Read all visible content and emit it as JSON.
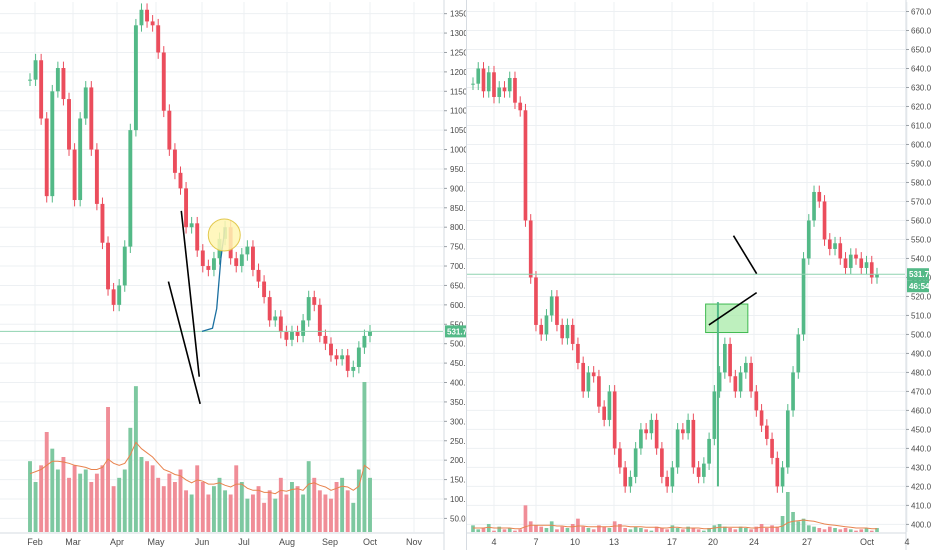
{
  "chart_data": [
    {
      "type": "candlestick",
      "y_ticks": [
        50,
        100,
        150,
        200,
        250,
        300,
        350,
        400,
        450,
        500,
        550,
        600,
        650,
        700,
        750,
        800,
        850,
        900,
        950,
        1000,
        1050,
        1100,
        1150,
        1200,
        1250,
        1300,
        1350
      ],
      "y_tick_labels": [
        "50.0",
        "100.0",
        "150.0",
        "200.0",
        "250.0",
        "300.0",
        "350.0",
        "400.0",
        "450.0",
        "500.0",
        "550.0",
        "600.0",
        "650.0",
        "700.0",
        "750.0",
        "800.0",
        "850.0",
        "900.0",
        "950.0",
        "1000.0",
        "1050.0",
        "1100.0",
        "1150.0",
        "1200.0",
        "1250.0",
        "1300.0",
        "1350.0"
      ],
      "x_tick_labels": [
        "Feb",
        "Mar",
        "Apr",
        "May",
        "Jun",
        "Jul",
        "Aug",
        "Sep",
        "Oct",
        "Nov"
      ],
      "ylim": [
        15,
        1380
      ],
      "price_badge": "531.7",
      "price_level": 531.7,
      "grid": true,
      "closes": [
        1180,
        1230,
        1080,
        880,
        1150,
        1210,
        1130,
        1000,
        870,
        1080,
        1160,
        1000,
        860,
        760,
        640,
        600,
        650,
        750,
        1050,
        1320,
        1360,
        1330,
        1320,
        1250,
        1100,
        1000,
        940,
        900,
        800,
        810,
        740,
        700,
        690,
        720,
        770,
        800,
        720,
        700,
        730,
        750,
        690,
        660,
        620,
        560,
        570,
        530,
        510,
        530,
        520,
        560,
        620,
        600,
        520,
        500,
        470,
        460,
        470,
        430,
        440,
        490,
        520,
        531.7
      ],
      "volume": {
        "values": [
          170,
          120,
          160,
          240,
          200,
          150,
          180,
          130,
          160,
          140,
          150,
          120,
          140,
          160,
          300,
          110,
          130,
          150,
          250,
          350,
          180,
          170,
          160,
          130,
          110,
          140,
          120,
          150,
          100,
          90,
          160,
          120,
          90,
          110,
          130,
          100,
          90,
          160,
          120,
          80,
          90,
          110,
          70,
          100,
          80,
          130,
          90,
          120,
          110,
          90,
          170,
          130,
          100,
          90,
          80,
          120,
          130,
          100,
          70,
          150,
          360,
          130
        ],
        "ma_values": [
          140,
          145,
          150,
          160,
          170,
          170,
          168,
          165,
          160,
          158,
          155,
          150,
          150,
          155,
          175,
          165,
          160,
          165,
          185,
          215,
          200,
          190,
          180,
          165,
          150,
          145,
          138,
          135,
          125,
          118,
          125,
          122,
          115,
          115,
          118,
          112,
          108,
          115,
          115,
          105,
          100,
          100,
          95,
          95,
          92,
          100,
          98,
          102,
          104,
          100,
          115,
          118,
          112,
          108,
          100,
          105,
          110,
          108,
          100,
          110,
          160,
          150
        ]
      },
      "drawings": {
        "upper_line": [
          [
            3.55,
            842
          ],
          [
            3.94,
            415
          ]
        ],
        "lower_line": [
          [
            3.27,
            660
          ],
          [
            3.96,
            345
          ]
        ],
        "projection": [
          [
            4.0,
            531.7
          ],
          [
            4.25,
            540
          ],
          [
            4.35,
            590
          ],
          [
            4.45,
            720
          ],
          [
            4.55,
            800
          ]
        ],
        "target_circle_at": [
          4.53,
          780
        ]
      }
    },
    {
      "type": "candlestick",
      "y_ticks": [
        400,
        410,
        420,
        430,
        440,
        450,
        460,
        470,
        480,
        490,
        500,
        510,
        520,
        530,
        540,
        550,
        560,
        570,
        580,
        590,
        600,
        610,
        620,
        630,
        640,
        650,
        660,
        670
      ],
      "y_tick_labels": [
        "400.0",
        "410.0",
        "420.0",
        "430.0",
        "440.0",
        "450.0",
        "460.0",
        "470.0",
        "480.0",
        "490.0",
        "500.0",
        "510.0",
        "520.0",
        "530.0",
        "540.0",
        "550.0",
        "560.0",
        "570.0",
        "580.0",
        "590.0",
        "600.0",
        "610.0",
        "620.0",
        "630.0",
        "640.0",
        "650.0",
        "660.0",
        "670.0"
      ],
      "x_tick_labels": [
        "4",
        "7",
        "10",
        "13",
        "17",
        "20",
        "24",
        "27",
        "Oct",
        "4"
      ],
      "ylim": [
        396,
        675
      ],
      "price_badge": "531.7",
      "time_badge": "46:54",
      "price_level": 531.7,
      "grid": true,
      "closes": [
        632,
        640,
        628,
        638,
        625,
        630,
        628,
        635,
        622,
        618,
        560,
        530,
        505,
        500,
        510,
        520,
        505,
        498,
        505,
        495,
        485,
        470,
        480,
        478,
        462,
        455,
        470,
        440,
        430,
        420,
        425,
        440,
        450,
        448,
        455,
        440,
        425,
        420,
        430,
        450,
        448,
        455,
        430,
        425,
        432,
        445,
        470,
        480,
        495,
        478,
        470,
        480,
        485,
        470,
        460,
        452,
        445,
        435,
        420,
        430,
        460,
        480,
        500,
        540,
        560,
        575,
        570,
        550,
        545,
        548,
        540,
        535,
        542,
        540,
        535,
        538,
        530,
        531.7
      ],
      "volume": {
        "values": [
          405,
          402,
          403,
          406,
          401,
          404,
          402,
          403,
          401,
          402,
          420,
          408,
          405,
          404,
          403,
          408,
          402,
          404,
          403,
          406,
          410,
          404,
          403,
          402,
          405,
          404,
          403,
          408,
          406,
          403,
          402,
          404,
          403,
          402,
          401,
          404,
          403,
          402,
          405,
          403,
          402,
          404,
          403,
          402,
          401,
          403,
          405,
          406,
          404,
          403,
          402,
          404,
          403,
          402,
          404,
          406,
          403,
          405,
          404,
          412,
          430,
          415,
          408,
          410,
          405,
          404,
          403,
          402,
          404,
          403,
          402,
          403,
          402,
          401,
          402,
          403,
          401,
          403
        ],
        "ma_values": [
          403,
          403,
          403,
          403.5,
          403,
          403,
          403,
          403,
          402.5,
          402.5,
          404,
          405,
          405,
          405,
          405,
          405,
          404.5,
          404.5,
          404,
          404,
          404.5,
          404.5,
          404,
          404,
          404,
          404,
          404,
          404.5,
          404.5,
          404.5,
          404,
          404,
          404,
          403.5,
          403.5,
          403.5,
          403,
          403,
          403.5,
          403.5,
          403,
          403,
          403,
          403,
          402.5,
          402.5,
          403,
          403.5,
          403.5,
          403.5,
          403.5,
          403.5,
          403.5,
          403,
          403,
          403.5,
          403.5,
          403.5,
          403.5,
          404.5,
          407,
          408,
          408.5,
          409,
          408.5,
          408,
          407,
          406,
          405.5,
          405,
          404.5,
          404,
          403.5,
          403,
          403,
          403,
          402.5,
          402.5
        ]
      },
      "drawings": {
        "support_zone": [
          [
            4.82,
            501
          ],
          [
            5.85,
            516
          ]
        ],
        "upper_line": [
          [
            5.5,
            552
          ],
          [
            6.05,
            532
          ]
        ],
        "lower_line": [
          [
            4.9,
            505
          ],
          [
            6.05,
            522
          ]
        ],
        "breakout_line": [
          [
            5.12,
            420
          ],
          [
            5.12,
            517
          ]
        ]
      }
    }
  ],
  "colors": {
    "up": "#53b987",
    "down": "#eb4d5c",
    "up_volume": "#7dc8a0",
    "down_volume": "#f08d97",
    "volume_ma": "#e8834e",
    "price_line": "#8fd3b0",
    "grid": "#edf0f3",
    "badge": "#53b987",
    "drawing": "#000000",
    "projection": "#1a6fa0",
    "target_fill": "#fff6b3",
    "target_stroke": "#e2c84e",
    "zone_fill": "#a3eaa3",
    "zone_stroke": "#3fb950"
  }
}
